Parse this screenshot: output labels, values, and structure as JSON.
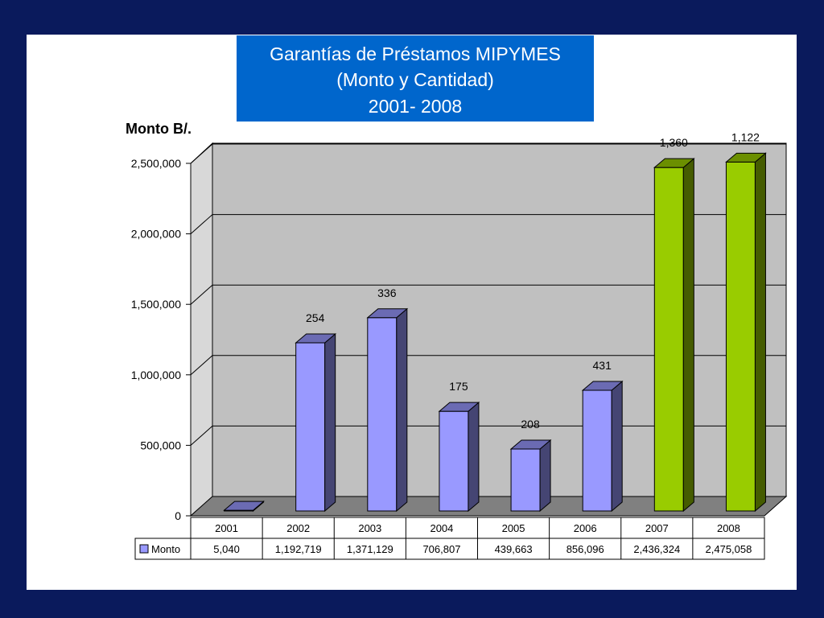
{
  "title": {
    "line1": "Garantías de Préstamos MIPYMES",
    "line2": "(Monto y Cantidad)",
    "line3": "2001- 2008"
  },
  "colors": {
    "background": "#0a1a5c",
    "title_box": "#0066cc",
    "bar_purple": "#9999ff",
    "bar_green": "#99cc00",
    "wall": "#c0c0c0",
    "floor": "#808080"
  },
  "chart_data": {
    "type": "bar",
    "ylabel": "Monto B/.",
    "ylim": [
      0,
      2500000
    ],
    "yticks": [
      "0",
      "500,000",
      "1,000,000",
      "1,500,000",
      "2,000,000",
      "2,500,000"
    ],
    "categories": [
      "2001",
      "2002",
      "2003",
      "2004",
      "2005",
      "2006",
      "2007",
      "2008"
    ],
    "series": [
      {
        "name": "Monto",
        "values": [
          5040,
          1192719,
          1371129,
          706807,
          439663,
          856096,
          2436324,
          2475058
        ],
        "table_values": [
          "5,040",
          "1,192,719",
          "1,371,129",
          "706,807",
          "439,663",
          "856,096",
          "2,436,324",
          "2,475,058"
        ]
      }
    ],
    "data_labels": [
      "",
      "254",
      "336",
      "175",
      "208",
      "431",
      "1,360",
      "1,122"
    ],
    "bar_colors": [
      "#9999ff",
      "#9999ff",
      "#9999ff",
      "#9999ff",
      "#9999ff",
      "#9999ff",
      "#99cc00",
      "#99cc00"
    ],
    "grid": true,
    "legend": "data-table"
  }
}
